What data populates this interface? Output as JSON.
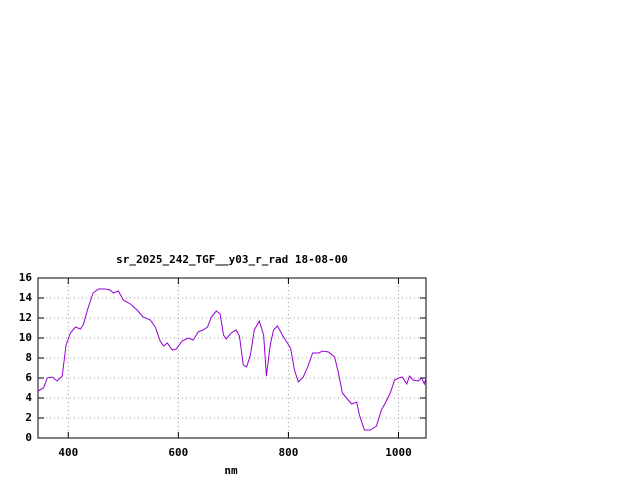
{
  "chart_data": {
    "type": "line",
    "title": "sr_2025_242_TGF__y03_r_rad 18-08-00",
    "x_label": "nm",
    "x": [
      345,
      355,
      362,
      371,
      380,
      389,
      396,
      404,
      413,
      422,
      427,
      436,
      445,
      455,
      467,
      476,
      482,
      491,
      500,
      513,
      525,
      536,
      549,
      558,
      567,
      573,
      580,
      589,
      596,
      607,
      618,
      627,
      636,
      645,
      653,
      660,
      669,
      676,
      682,
      687,
      696,
      705,
      711,
      718,
      724,
      731,
      738,
      747,
      755,
      760,
      767,
      773,
      780,
      791,
      804,
      811,
      818,
      827,
      835,
      844,
      855,
      862,
      873,
      884,
      891,
      898,
      907,
      915,
      924,
      929,
      938,
      949,
      960,
      969,
      978,
      985,
      993,
      1000,
      1007,
      1015,
      1020,
      1027,
      1036,
      1042,
      1047,
      1050
    ],
    "series": [
      {
        "color": "#9400d3",
        "values": [
          4.7,
          5.0,
          6.0,
          6.1,
          5.7,
          6.2,
          9.3,
          10.5,
          11.1,
          10.9,
          11.3,
          13.0,
          14.5,
          14.9,
          14.9,
          14.8,
          14.5,
          14.7,
          13.8,
          13.4,
          12.8,
          12.1,
          11.8,
          11.1,
          9.7,
          9.2,
          9.5,
          8.8,
          8.9,
          9.7,
          10.0,
          9.8,
          10.6,
          10.8,
          11.1,
          12.1,
          12.7,
          12.4,
          10.3,
          9.9,
          10.5,
          10.8,
          10.2,
          7.3,
          7.1,
          8.3,
          10.8,
          11.7,
          10.3,
          6.2,
          9.3,
          10.8,
          11.2,
          10.1,
          9.0,
          6.8,
          5.6,
          6.1,
          7.1,
          8.5,
          8.5,
          8.7,
          8.6,
          8.1,
          6.5,
          4.5,
          3.9,
          3.4,
          3.6,
          2.3,
          0.8,
          0.8,
          1.2,
          2.8,
          3.7,
          4.5,
          5.8,
          6.0,
          6.1,
          5.4,
          6.2,
          5.8,
          5.7,
          6.0,
          5.4,
          6.0
        ]
      }
    ],
    "xlim": [
      345,
      1050
    ],
    "ylim": [
      0,
      16
    ],
    "xticks": [
      400,
      600,
      800,
      1000
    ],
    "yticks": [
      0,
      2,
      4,
      6,
      8,
      10,
      12,
      14,
      16
    ],
    "grid": true
  }
}
